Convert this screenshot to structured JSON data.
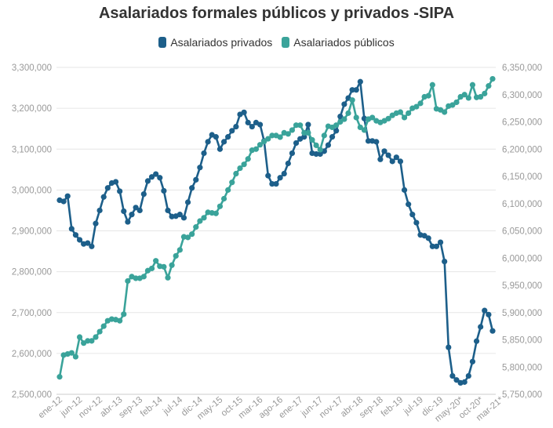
{
  "chart_data": {
    "type": "line",
    "title": "Asalariados formales públicos y privados -SIPA",
    "xlabel": "",
    "ylabel_left": "",
    "ylabel_right": "",
    "x_tick_labels": [
      "ene-12",
      "jun-12",
      "nov-12",
      "abr-13",
      "sep-13",
      "feb-14",
      "jul-14",
      "dic-14",
      "may-15",
      "oct-15",
      "mar-16",
      "ago-16",
      "ene-17",
      "jun-17",
      "nov-17",
      "abr-18",
      "sep-18",
      "feb-19",
      "jul-19",
      "dic-19",
      "may-20*",
      "oct-20*",
      "mar-21*"
    ],
    "y_left": {
      "ticks": [
        "2,500,000",
        "2,600,000",
        "2,700,000",
        "2,800,000",
        "2,900,000",
        "3,000,000",
        "3,100,000",
        "3,200,000",
        "3,300,000"
      ],
      "range": [
        2500000,
        3300000
      ]
    },
    "y_right": {
      "ticks": [
        "5,750,000",
        "5,800,000",
        "5,850,000",
        "5,900,000",
        "5,950,000",
        "6,000,000",
        "6,050,000",
        "6,100,000",
        "6,150,000",
        "6,200,000",
        "6,250,000",
        "6,300,000",
        "6,350,000"
      ],
      "range": [
        5750000,
        6350000
      ]
    },
    "grid": "horizontal",
    "legend_position": "top-center",
    "series": [
      {
        "name": "Asalariados privados",
        "axis": "left",
        "color": "#1d5f8a",
        "start": "ene-12",
        "values": [
          2975000,
          2972000,
          2985000,
          2905000,
          2890000,
          2878000,
          2868000,
          2870000,
          2862000,
          2918000,
          2950000,
          2983000,
          3005000,
          3017000,
          3020000,
          2997000,
          2948000,
          2922000,
          2940000,
          2957000,
          2950000,
          2990000,
          3022000,
          3032000,
          3039000,
          3030000,
          2998000,
          2950000,
          2935000,
          2936000,
          2940000,
          2932000,
          2970000,
          3005000,
          3025000,
          3055000,
          3090000,
          3118000,
          3135000,
          3130000,
          3100000,
          3118000,
          3130000,
          3145000,
          3155000,
          3185000,
          3190000,
          3165000,
          3155000,
          3165000,
          3160000,
          3120000,
          3035000,
          3015000,
          3015000,
          3030000,
          3040000,
          3065000,
          3090000,
          3115000,
          3125000,
          3130000,
          3160000,
          3090000,
          3088000,
          3088000,
          3095000,
          3110000,
          3130000,
          3145000,
          3180000,
          3210000,
          3225000,
          3245000,
          3245000,
          3265000,
          3175000,
          3120000,
          3120000,
          3118000,
          3075000,
          3095000,
          3085000,
          3070000,
          3080000,
          3070000,
          3000000,
          2965000,
          2940000,
          2920000,
          2890000,
          2888000,
          2882000,
          2862000,
          2862000,
          2872000,
          2825000,
          2615000,
          2545000,
          2535000,
          2528000,
          2530000,
          2545000,
          2580000,
          2630000,
          2665000,
          2705000,
          2695000,
          2655000
        ]
      },
      {
        "name": "Asalariados públicos",
        "axis": "right",
        "color": "#3aa39a",
        "start": "ene-12",
        "values": [
          5782000,
          5822000,
          5824000,
          5826000,
          5819000,
          5855000,
          5844000,
          5848000,
          5848000,
          5855000,
          5865000,
          5875000,
          5885000,
          5888000,
          5887000,
          5885000,
          5897000,
          5958000,
          5966000,
          5963000,
          5963000,
          5966000,
          5977000,
          5981000,
          5995000,
          5985000,
          5984000,
          5964000,
          5987000,
          6004000,
          6015000,
          6039000,
          6038000,
          6044000,
          6057000,
          6068000,
          6074000,
          6084000,
          6083000,
          6082000,
          6095000,
          6109000,
          6125000,
          6139000,
          6155000,
          6165000,
          6172000,
          6182000,
          6198000,
          6200000,
          6208000,
          6214000,
          6219000,
          6225000,
          6225000,
          6222000,
          6230000,
          6228000,
          6235000,
          6244000,
          6244000,
          6230000,
          6230000,
          6217000,
          6207000,
          6199000,
          6225000,
          6242000,
          6240000,
          6244000,
          6250000,
          6255000,
          6266000,
          6290000,
          6258000,
          6240000,
          6235000,
          6255000,
          6258000,
          6252000,
          6249000,
          6252000,
          6256000,
          6262000,
          6266000,
          6268000,
          6258000,
          6266000,
          6275000,
          6278000,
          6284000,
          6296000,
          6298000,
          6318000,
          6274000,
          6272000,
          6268000,
          6279000,
          6281000,
          6286000,
          6296000,
          6300000,
          6294000,
          6318000,
          6295000,
          6296000,
          6302000,
          6316000,
          6329000
        ]
      }
    ]
  }
}
